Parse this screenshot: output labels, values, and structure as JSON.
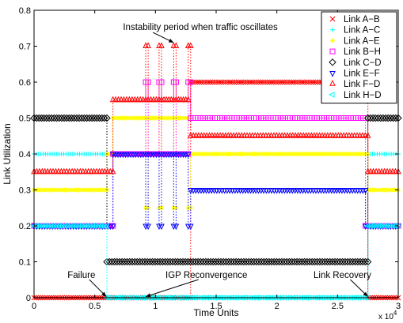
{
  "chart_data": {
    "type": "line",
    "xlabel": "Time Units",
    "ylabel": "Link Utilization",
    "x_exponent_label": "x 10",
    "x_exponent_sup": "4",
    "xlim": [
      0,
      30000
    ],
    "ylim": [
      0,
      0.8
    ],
    "xticks": [
      0,
      5000,
      10000,
      15000,
      20000,
      25000,
      30000
    ],
    "xtick_labels": [
      "0",
      "0.5",
      "1",
      "1.5",
      "2",
      "2.5",
      "3"
    ],
    "yticks": [
      0,
      0.1,
      0.2,
      0.3,
      0.4,
      0.5,
      0.6,
      0.7,
      0.8
    ],
    "ytick_labels": [
      "0",
      "0.1",
      "0.2",
      "0.3",
      "0.4",
      "0.5",
      "0.6",
      "0.7",
      "0.8"
    ],
    "grid": false,
    "legend_position": "top-right",
    "series": [
      {
        "name": "Link A−B",
        "color": "#ff0000",
        "marker": "x",
        "values": [
          [
            0,
            0
          ],
          [
            12900,
            0
          ],
          [
            12900,
            0.6
          ],
          [
            27500,
            0.6
          ],
          [
            27500,
            0
          ],
          [
            30000,
            0
          ]
        ]
      },
      {
        "name": "Link A−C",
        "color": "#00ffff",
        "marker": "+",
        "values": [
          [
            0,
            0.4
          ],
          [
            6000,
            0.4
          ],
          [
            6000,
            0
          ],
          [
            27500,
            0
          ],
          [
            27500,
            0.4
          ],
          [
            30000,
            0.4
          ]
        ]
      },
      {
        "name": "Link A−E",
        "color": "#ffff00",
        "marker": "*",
        "values": [
          [
            0,
            0.3
          ],
          [
            6000,
            0.3
          ],
          [
            6000,
            0.4
          ],
          [
            6500,
            0.4
          ],
          [
            6500,
            0.5
          ],
          [
            9200,
            0.5
          ],
          [
            9200,
            0.25
          ],
          [
            9400,
            0.25
          ],
          [
            9400,
            0.5
          ],
          [
            10300,
            0.5
          ],
          [
            10300,
            0.25
          ],
          [
            10500,
            0.25
          ],
          [
            10500,
            0.5
          ],
          [
            11500,
            0.5
          ],
          [
            11500,
            0.25
          ],
          [
            11700,
            0.25
          ],
          [
            11700,
            0.5
          ],
          [
            12700,
            0.5
          ],
          [
            12700,
            0.25
          ],
          [
            12900,
            0.25
          ],
          [
            12900,
            0.4
          ],
          [
            27500,
            0.4
          ],
          [
            27500,
            0.3
          ],
          [
            30000,
            0.3
          ]
        ]
      },
      {
        "name": "Link B−H",
        "color": "#ff00ff",
        "marker": "square",
        "values": [
          [
            0,
            0.2
          ],
          [
            6500,
            0.2
          ],
          [
            6500,
            0.4
          ],
          [
            9200,
            0.4
          ],
          [
            9200,
            0.6
          ],
          [
            9400,
            0.6
          ],
          [
            9400,
            0.4
          ],
          [
            10300,
            0.4
          ],
          [
            10300,
            0.6
          ],
          [
            10500,
            0.6
          ],
          [
            10500,
            0.4
          ],
          [
            11500,
            0.4
          ],
          [
            11500,
            0.6
          ],
          [
            11700,
            0.6
          ],
          [
            11700,
            0.4
          ],
          [
            12700,
            0.4
          ],
          [
            12700,
            0.6
          ],
          [
            12900,
            0.6
          ],
          [
            12900,
            0.5
          ],
          [
            27300,
            0.5
          ],
          [
            27300,
            0.2
          ],
          [
            30000,
            0.2
          ]
        ]
      },
      {
        "name": "Link C−D",
        "color": "#000000",
        "marker": "diamond",
        "values": [
          [
            0,
            0.5
          ],
          [
            6000,
            0.5
          ],
          [
            6000,
            0.1
          ],
          [
            27500,
            0.1
          ],
          [
            27500,
            0.5
          ],
          [
            30000,
            0.5
          ]
        ]
      },
      {
        "name": "Link E−F",
        "color": "#0000ff",
        "marker": "triangle-down",
        "values": [
          [
            0,
            0.2
          ],
          [
            6500,
            0.2
          ],
          [
            6500,
            0.4
          ],
          [
            9200,
            0.4
          ],
          [
            9200,
            0.2
          ],
          [
            9400,
            0.2
          ],
          [
            9400,
            0.4
          ],
          [
            10300,
            0.4
          ],
          [
            10300,
            0.2
          ],
          [
            10500,
            0.2
          ],
          [
            10500,
            0.4
          ],
          [
            11500,
            0.4
          ],
          [
            11500,
            0.2
          ],
          [
            11700,
            0.2
          ],
          [
            11700,
            0.4
          ],
          [
            12700,
            0.4
          ],
          [
            12700,
            0.2
          ],
          [
            12900,
            0.2
          ],
          [
            12900,
            0.3
          ],
          [
            27300,
            0.3
          ],
          [
            27300,
            0.2
          ],
          [
            30000,
            0.2
          ]
        ]
      },
      {
        "name": "Link F−D",
        "color": "#ff0000",
        "marker": "triangle-up",
        "values": [
          [
            0,
            0.35
          ],
          [
            6500,
            0.35
          ],
          [
            6500,
            0.55
          ],
          [
            9200,
            0.55
          ],
          [
            9200,
            0.7
          ],
          [
            9400,
            0.7
          ],
          [
            9400,
            0.55
          ],
          [
            10300,
            0.55
          ],
          [
            10300,
            0.7
          ],
          [
            10500,
            0.7
          ],
          [
            10500,
            0.55
          ],
          [
            11500,
            0.55
          ],
          [
            11500,
            0.7
          ],
          [
            11700,
            0.7
          ],
          [
            11700,
            0.55
          ],
          [
            12700,
            0.55
          ],
          [
            12700,
            0.7
          ],
          [
            12900,
            0.7
          ],
          [
            12900,
            0.45
          ],
          [
            27500,
            0.45
          ],
          [
            27500,
            0.35
          ],
          [
            30000,
            0.35
          ]
        ]
      },
      {
        "name": "Link H−D",
        "color": "#00ffff",
        "marker": "triangle-left",
        "values": [
          [
            0,
            0.2
          ],
          [
            6000,
            0.2
          ],
          [
            6000,
            0
          ],
          [
            27500,
            0
          ],
          [
            27500,
            0.2
          ],
          [
            30000,
            0.2
          ]
        ]
      }
    ],
    "annotations": [
      {
        "text": "Instability period when traffic oscillates",
        "x": 13700,
        "y": 0.745,
        "arrow_to": [
          11500,
          0.71
        ]
      },
      {
        "text": "Failure",
        "x": 3900,
        "y": 0.055,
        "arrow_to": [
          5950,
          0.003
        ]
      },
      {
        "text": "IGP Reconvergence",
        "x": 14200,
        "y": 0.055,
        "arrow_to": [
          9200,
          0.003
        ]
      },
      {
        "text": "Link Recovery",
        "x": 25400,
        "y": 0.055,
        "arrow_to": [
          27500,
          0.003
        ]
      }
    ]
  }
}
